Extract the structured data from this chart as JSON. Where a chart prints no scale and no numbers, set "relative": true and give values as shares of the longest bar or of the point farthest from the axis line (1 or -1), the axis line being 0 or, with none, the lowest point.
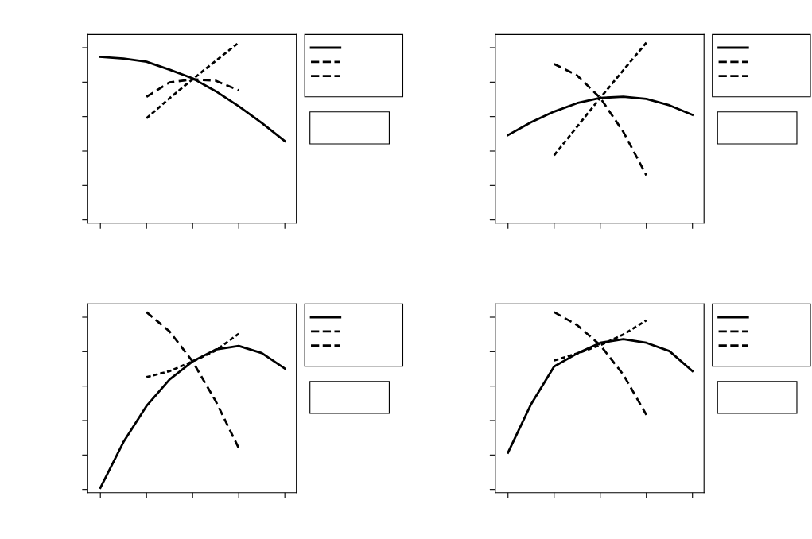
{
  "chart_data": [
    {
      "type": "line",
      "relative": true,
      "grid": false,
      "marker": "none",
      "categories": [
        null,
        null,
        null,
        null,
        null,
        null,
        null,
        null,
        null
      ],
      "series": [
        {
          "color": "#000000",
          "line_style": "solid",
          "values": [
            0.921,
            0.912,
            0.894,
            0.85,
            0.802,
            0.731,
            0.648,
            0.555,
            0.454
          ]
        },
        {
          "color": "#000000",
          "line_style": "dashed",
          "values": [
            null,
            null,
            0.7,
            0.78,
            0.797,
            0.789,
            0.736,
            null,
            null
          ]
        },
        {
          "color": "#000000",
          "line_style": "dotted",
          "values": [
            null,
            null,
            0.581,
            0.692,
            0.797,
            0.899,
            1.0,
            null,
            null
          ]
        }
      ]
    },
    {
      "type": "line",
      "relative": true,
      "grid": false,
      "marker": "none",
      "categories": [
        null,
        null,
        null,
        null,
        null,
        null,
        null,
        null,
        null
      ],
      "series": [
        {
          "color": "#000000",
          "line_style": "solid",
          "values": [
            0.488,
            0.559,
            0.618,
            0.665,
            0.694,
            0.7,
            0.688,
            0.653,
            0.6
          ]
        },
        {
          "color": "#000000",
          "line_style": "dashed",
          "values": [
            null,
            null,
            0.882,
            0.818,
            0.694,
            0.506,
            0.265,
            null,
            null
          ]
        },
        {
          "color": "#000000",
          "line_style": "dotted",
          "values": [
            null,
            null,
            0.376,
            0.535,
            0.694,
            0.847,
            1.0,
            null,
            null
          ]
        }
      ]
    },
    {
      "type": "line",
      "relative": true,
      "grid": false,
      "marker": "none",
      "categories": [
        null,
        null,
        null,
        null,
        null,
        null,
        null,
        null,
        null
      ],
      "series": [
        {
          "color": "#000000",
          "line_style": "solid",
          "values": [
            0.027,
            0.28,
            0.48,
            0.627,
            0.727,
            0.793,
            0.813,
            0.773,
            0.687
          ]
        },
        {
          "color": "#000000",
          "line_style": "dashed",
          "values": [
            null,
            null,
            1.0,
            0.893,
            0.727,
            0.507,
            0.247,
            null,
            null
          ]
        },
        {
          "color": "#000000",
          "line_style": "dotted",
          "values": [
            null,
            null,
            0.64,
            0.673,
            0.727,
            0.787,
            0.88,
            null,
            null
          ]
        }
      ]
    },
    {
      "type": "line",
      "relative": true,
      "grid": false,
      "marker": "none",
      "categories": [
        null,
        null,
        null,
        null,
        null,
        null,
        null,
        null,
        null
      ],
      "series": [
        {
          "color": "#000000",
          "line_style": "solid",
          "values": [
            0.222,
            0.49,
            0.699,
            0.771,
            0.83,
            0.85,
            0.83,
            0.784,
            0.673
          ]
        },
        {
          "color": "#000000",
          "line_style": "dashed",
          "values": [
            null,
            null,
            1.0,
            0.928,
            0.817,
            0.654,
            0.431,
            null,
            null
          ]
        },
        {
          "color": "#000000",
          "line_style": "dotted",
          "values": [
            null,
            null,
            0.732,
            0.771,
            0.817,
            0.876,
            0.954,
            null,
            null
          ]
        }
      ]
    }
  ]
}
